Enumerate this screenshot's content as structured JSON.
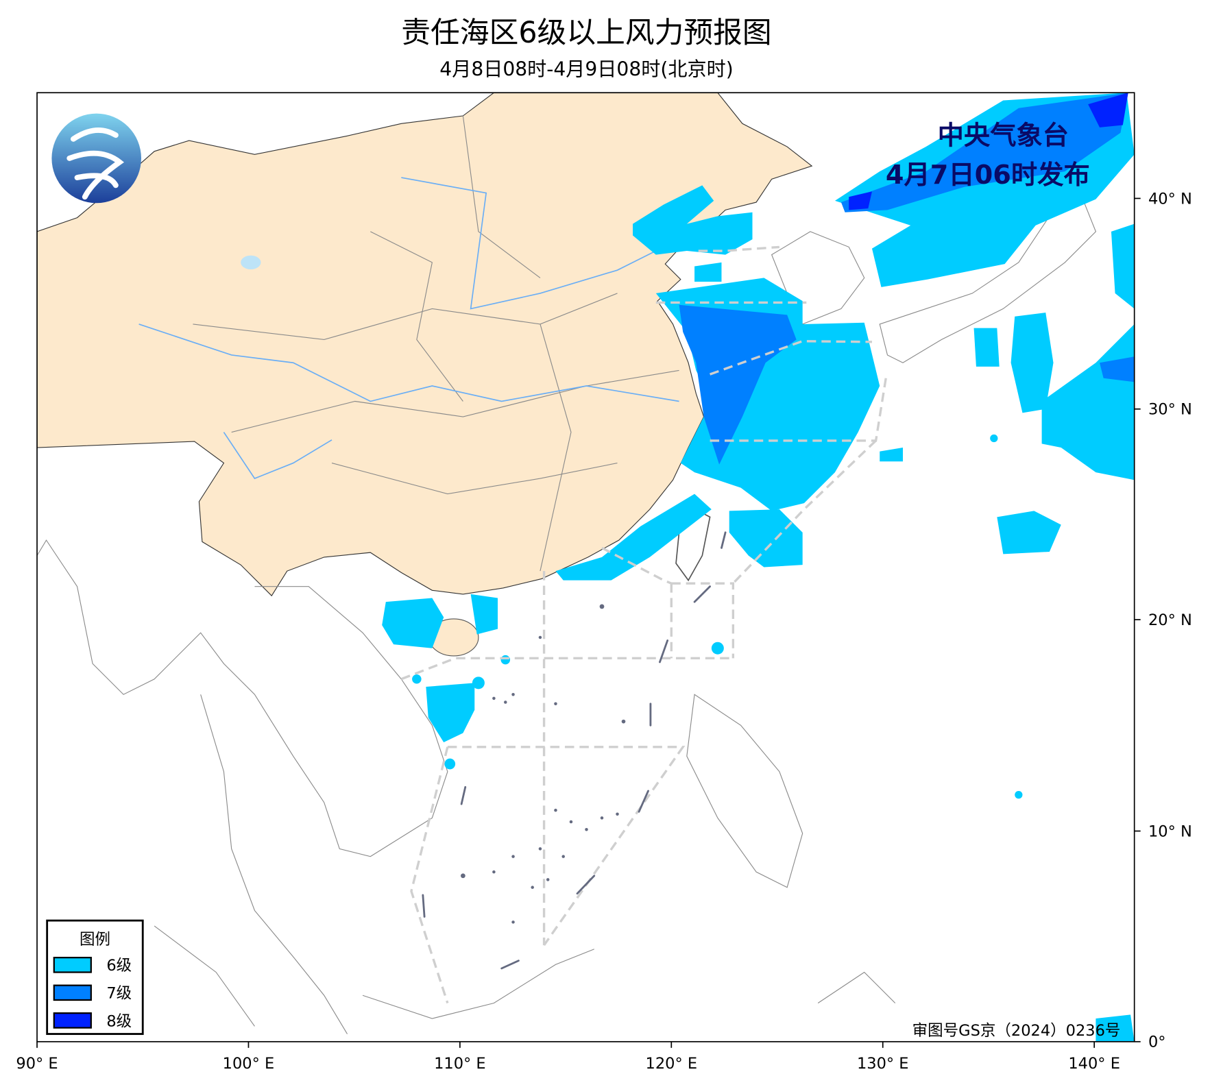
{
  "title": "责任海区6级以上风力预报图",
  "subtitle": "4月8日08时-4月9日08时(北京时)",
  "publisher": {
    "name": "中央气象台",
    "issued": "4月7日06时发布"
  },
  "approval_number": "审图号GS京（2024）0236号",
  "axes": {
    "longitude_ticks": [
      "90° E",
      "100° E",
      "110° E",
      "120° E",
      "130° E",
      "140° E"
    ],
    "latitude_ticks": [
      "0°",
      "10° N",
      "20° N",
      "30° N",
      "40° N"
    ]
  },
  "legend": {
    "title": "图例",
    "items": [
      {
        "label": "6级",
        "color": "#00CCFF"
      },
      {
        "label": "7级",
        "color": "#0080FF"
      },
      {
        "label": "8级",
        "color": "#0022FF"
      }
    ]
  },
  "colors": {
    "china_land": "#FDE9CC",
    "river": "#6AAEF5",
    "sea_area_boundary": "#CFCFCF",
    "publisher_text": "#0A0A66"
  }
}
